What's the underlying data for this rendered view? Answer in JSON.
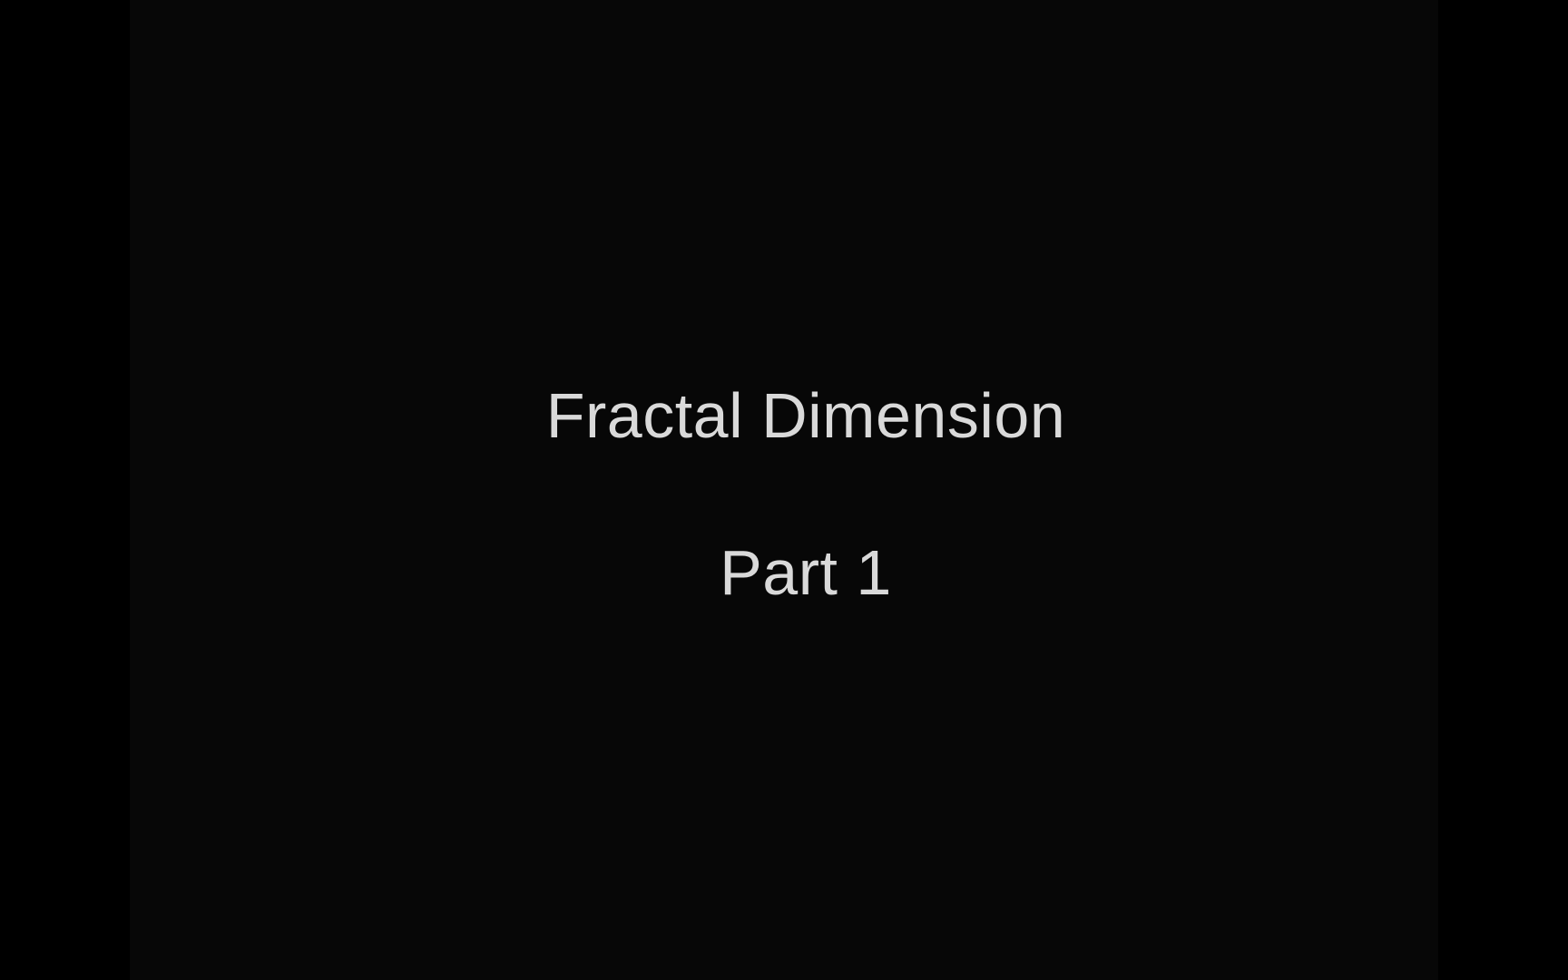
{
  "slide": {
    "title": "Fractal Dimension",
    "subtitle": "Part 1"
  },
  "colors": {
    "background": "#000000",
    "slide_background": "#070707",
    "text": "#d9d9d9"
  }
}
